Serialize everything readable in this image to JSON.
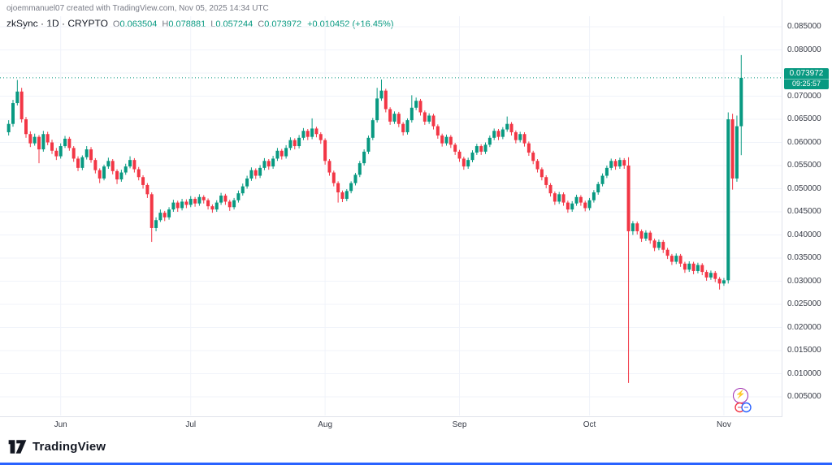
{
  "header": {
    "attribution": "ojoemmanuel07 created with TradingView.com, Nov 05, 2025 14:34 UTC"
  },
  "legend": {
    "symbol_line": "zkSync · 1D · CRYPTO",
    "ohlc": [
      {
        "label": "O",
        "value": "0.063504"
      },
      {
        "label": "H",
        "value": "0.078881"
      },
      {
        "label": "L",
        "value": "0.057244"
      },
      {
        "label": "C",
        "value": "0.073972"
      }
    ],
    "change": "+0.010452 (+16.45%)"
  },
  "footer": {
    "brand": "TradingView"
  },
  "stickers": {
    "lightning_glyph": "⚡"
  },
  "chart_data": {
    "type": "candlestick",
    "symbol": "zkSync",
    "interval": "1D",
    "exchange": "CRYPTO",
    "last_price": "0.073972",
    "countdown": "09:25:57",
    "colors": {
      "up": "#089981",
      "down": "#f23645",
      "last_price_line": "#089981",
      "grid": "#f0f3fa"
    },
    "y_axis": {
      "max": 0.085,
      "min": 0.005,
      "ticks": [
        "0.085000",
        "0.080000",
        "0.075000",
        "0.070000",
        "0.065000",
        "0.060000",
        "0.055000",
        "0.050000",
        "0.045000",
        "0.040000",
        "0.035000",
        "0.030000",
        "0.025000",
        "0.020000",
        "0.015000",
        "0.010000",
        "0.005000"
      ]
    },
    "x_axis": {
      "labels": [
        "Jun",
        "Jul",
        "Aug",
        "Sep",
        "Oct",
        "Nov"
      ],
      "label_candle_indices": [
        12,
        42,
        73,
        104,
        134,
        165
      ]
    },
    "candles": [
      [
        0.0622,
        0.0648,
        0.0615,
        0.064
      ],
      [
        0.064,
        0.0692,
        0.0634,
        0.0685
      ],
      [
        0.0685,
        0.0735,
        0.068,
        0.071
      ],
      [
        0.071,
        0.0718,
        0.0643,
        0.065
      ],
      [
        0.065,
        0.0655,
        0.061,
        0.0618
      ],
      [
        0.0618,
        0.0624,
        0.059,
        0.0598
      ],
      [
        0.0598,
        0.0619,
        0.0593,
        0.0612
      ],
      [
        0.0612,
        0.0616,
        0.0555,
        0.0585
      ],
      [
        0.0585,
        0.0625,
        0.058,
        0.0618
      ],
      [
        0.0618,
        0.0623,
        0.0594,
        0.06
      ],
      [
        0.06,
        0.0606,
        0.0575,
        0.0582
      ],
      [
        0.0582,
        0.0588,
        0.0562,
        0.057
      ],
      [
        0.057,
        0.0598,
        0.0565,
        0.0592
      ],
      [
        0.0592,
        0.0614,
        0.0588,
        0.0608
      ],
      [
        0.0608,
        0.0612,
        0.0582,
        0.0588
      ],
      [
        0.0588,
        0.0592,
        0.0558,
        0.0565
      ],
      [
        0.0565,
        0.057,
        0.0538,
        0.0545
      ],
      [
        0.0545,
        0.0572,
        0.054,
        0.0568
      ],
      [
        0.0568,
        0.0592,
        0.0563,
        0.0585
      ],
      [
        0.0585,
        0.059,
        0.0556,
        0.0562
      ],
      [
        0.0562,
        0.0566,
        0.0533,
        0.054
      ],
      [
        0.054,
        0.0544,
        0.0512,
        0.0522
      ],
      [
        0.0522,
        0.0552,
        0.0518,
        0.0548
      ],
      [
        0.0548,
        0.0567,
        0.0543,
        0.056
      ],
      [
        0.056,
        0.0564,
        0.0531,
        0.0538
      ],
      [
        0.0538,
        0.0542,
        0.051,
        0.052
      ],
      [
        0.052,
        0.0541,
        0.0515,
        0.0535
      ],
      [
        0.0535,
        0.0554,
        0.053,
        0.0548
      ],
      [
        0.0548,
        0.057,
        0.0544,
        0.0562
      ],
      [
        0.0562,
        0.0566,
        0.0535,
        0.0542
      ],
      [
        0.0542,
        0.0547,
        0.0518,
        0.0525
      ],
      [
        0.0525,
        0.0529,
        0.05,
        0.0508
      ],
      [
        0.0508,
        0.0512,
        0.048,
        0.0488
      ],
      [
        0.0488,
        0.0492,
        0.0385,
        0.0415
      ],
      [
        0.0415,
        0.0438,
        0.0408,
        0.0432
      ],
      [
        0.0432,
        0.0455,
        0.0428,
        0.0448
      ],
      [
        0.0448,
        0.0452,
        0.043,
        0.0438
      ],
      [
        0.0438,
        0.046,
        0.0433,
        0.0455
      ],
      [
        0.0455,
        0.0476,
        0.045,
        0.047
      ],
      [
        0.047,
        0.0474,
        0.045,
        0.0458
      ],
      [
        0.0458,
        0.0478,
        0.0453,
        0.0472
      ],
      [
        0.0472,
        0.0477,
        0.0458,
        0.0465
      ],
      [
        0.0465,
        0.0484,
        0.046,
        0.0478
      ],
      [
        0.0478,
        0.0482,
        0.0461,
        0.0468
      ],
      [
        0.0468,
        0.0488,
        0.0463,
        0.0482
      ],
      [
        0.0482,
        0.0486,
        0.0468,
        0.0475
      ],
      [
        0.0475,
        0.0479,
        0.0455,
        0.0462
      ],
      [
        0.0462,
        0.0466,
        0.0448,
        0.0455
      ],
      [
        0.0455,
        0.0475,
        0.045,
        0.047
      ],
      [
        0.047,
        0.0491,
        0.0465,
        0.0485
      ],
      [
        0.0485,
        0.0489,
        0.0465,
        0.0472
      ],
      [
        0.0472,
        0.0476,
        0.0452,
        0.046
      ],
      [
        0.046,
        0.048,
        0.0455,
        0.0475
      ],
      [
        0.0475,
        0.0496,
        0.047,
        0.049
      ],
      [
        0.049,
        0.0511,
        0.0485,
        0.0505
      ],
      [
        0.0505,
        0.0528,
        0.05,
        0.0522
      ],
      [
        0.0522,
        0.0546,
        0.0517,
        0.054
      ],
      [
        0.054,
        0.0544,
        0.0521,
        0.0528
      ],
      [
        0.0528,
        0.0551,
        0.0523,
        0.0545
      ],
      [
        0.0545,
        0.0566,
        0.054,
        0.056
      ],
      [
        0.056,
        0.0564,
        0.0541,
        0.0548
      ],
      [
        0.0548,
        0.0571,
        0.0543,
        0.0565
      ],
      [
        0.0565,
        0.0588,
        0.056,
        0.0582
      ],
      [
        0.0582,
        0.0586,
        0.0563,
        0.057
      ],
      [
        0.057,
        0.0594,
        0.0565,
        0.0588
      ],
      [
        0.0588,
        0.0611,
        0.0583,
        0.0605
      ],
      [
        0.0605,
        0.0609,
        0.0585,
        0.0592
      ],
      [
        0.0592,
        0.0616,
        0.0587,
        0.061
      ],
      [
        0.061,
        0.0631,
        0.0605,
        0.0625
      ],
      [
        0.0625,
        0.0629,
        0.0605,
        0.0612
      ],
      [
        0.0612,
        0.0652,
        0.0607,
        0.063
      ],
      [
        0.063,
        0.0634,
        0.0611,
        0.0618
      ],
      [
        0.0618,
        0.0622,
        0.0597,
        0.0605
      ],
      [
        0.0605,
        0.0609,
        0.0552,
        0.056
      ],
      [
        0.056,
        0.0564,
        0.0528,
        0.0535
      ],
      [
        0.0535,
        0.0539,
        0.0505,
        0.0512
      ],
      [
        0.0512,
        0.0516,
        0.047,
        0.0492
      ],
      [
        0.0492,
        0.0496,
        0.0471,
        0.0478
      ],
      [
        0.0478,
        0.0499,
        0.0473,
        0.0495
      ],
      [
        0.0495,
        0.0516,
        0.049,
        0.0512
      ],
      [
        0.0512,
        0.0534,
        0.0507,
        0.053
      ],
      [
        0.053,
        0.056,
        0.0525,
        0.0555
      ],
      [
        0.0555,
        0.0585,
        0.055,
        0.058
      ],
      [
        0.058,
        0.0615,
        0.0575,
        0.061
      ],
      [
        0.061,
        0.0653,
        0.0605,
        0.0648
      ],
      [
        0.0648,
        0.0718,
        0.0643,
        0.0695
      ],
      [
        0.0695,
        0.0736,
        0.069,
        0.0712
      ],
      [
        0.0712,
        0.0716,
        0.0665,
        0.0672
      ],
      [
        0.0672,
        0.0676,
        0.0638,
        0.0645
      ],
      [
        0.0645,
        0.0667,
        0.064,
        0.0662
      ],
      [
        0.0662,
        0.0666,
        0.0633,
        0.064
      ],
      [
        0.064,
        0.0644,
        0.0615,
        0.0622
      ],
      [
        0.0622,
        0.0652,
        0.0617,
        0.0648
      ],
      [
        0.0648,
        0.0702,
        0.0643,
        0.0675
      ],
      [
        0.0675,
        0.0697,
        0.067,
        0.069
      ],
      [
        0.069,
        0.0694,
        0.0658,
        0.0665
      ],
      [
        0.0665,
        0.0669,
        0.0638,
        0.0645
      ],
      [
        0.0645,
        0.0663,
        0.064,
        0.0658
      ],
      [
        0.0658,
        0.0662,
        0.0628,
        0.0635
      ],
      [
        0.0635,
        0.0639,
        0.0608,
        0.0615
      ],
      [
        0.0615,
        0.0619,
        0.0591,
        0.0598
      ],
      [
        0.0598,
        0.0617,
        0.0593,
        0.0612
      ],
      [
        0.0612,
        0.0616,
        0.0588,
        0.0595
      ],
      [
        0.0595,
        0.0599,
        0.0573,
        0.058
      ],
      [
        0.058,
        0.0584,
        0.0558,
        0.0565
      ],
      [
        0.0565,
        0.0569,
        0.0541,
        0.0548
      ],
      [
        0.0548,
        0.0567,
        0.0543,
        0.0562
      ],
      [
        0.0562,
        0.0583,
        0.0557,
        0.0578
      ],
      [
        0.0578,
        0.0597,
        0.0573,
        0.0592
      ],
      [
        0.0592,
        0.0596,
        0.0573,
        0.058
      ],
      [
        0.058,
        0.06,
        0.0575,
        0.0595
      ],
      [
        0.0595,
        0.0615,
        0.059,
        0.061
      ],
      [
        0.061,
        0.063,
        0.0605,
        0.0625
      ],
      [
        0.0625,
        0.0629,
        0.0605,
        0.0612
      ],
      [
        0.0612,
        0.0633,
        0.0607,
        0.0628
      ],
      [
        0.0628,
        0.0656,
        0.0623,
        0.064
      ],
      [
        0.064,
        0.0644,
        0.0615,
        0.0622
      ],
      [
        0.0622,
        0.0626,
        0.0598,
        0.0605
      ],
      [
        0.0605,
        0.0623,
        0.06,
        0.0618
      ],
      [
        0.0618,
        0.0622,
        0.0591,
        0.0598
      ],
      [
        0.0598,
        0.0602,
        0.0571,
        0.0578
      ],
      [
        0.0578,
        0.0582,
        0.0553,
        0.056
      ],
      [
        0.056,
        0.0564,
        0.0535,
        0.0542
      ],
      [
        0.0542,
        0.0546,
        0.0518,
        0.0525
      ],
      [
        0.0525,
        0.0529,
        0.0501,
        0.0508
      ],
      [
        0.0508,
        0.0512,
        0.0483,
        0.049
      ],
      [
        0.049,
        0.0494,
        0.0465,
        0.0472
      ],
      [
        0.0472,
        0.0493,
        0.0467,
        0.0488
      ],
      [
        0.0488,
        0.0492,
        0.0463,
        0.047
      ],
      [
        0.047,
        0.0474,
        0.0448,
        0.0455
      ],
      [
        0.0455,
        0.0473,
        0.045,
        0.0468
      ],
      [
        0.0468,
        0.0487,
        0.0463,
        0.0482
      ],
      [
        0.0482,
        0.0486,
        0.0463,
        0.047
      ],
      [
        0.047,
        0.0474,
        0.0451,
        0.0458
      ],
      [
        0.0458,
        0.048,
        0.0453,
        0.0475
      ],
      [
        0.0475,
        0.0497,
        0.047,
        0.0492
      ],
      [
        0.0492,
        0.0515,
        0.0487,
        0.051
      ],
      [
        0.051,
        0.0533,
        0.0505,
        0.0528
      ],
      [
        0.0528,
        0.055,
        0.0523,
        0.0545
      ],
      [
        0.0545,
        0.0565,
        0.054,
        0.056
      ],
      [
        0.056,
        0.0564,
        0.0541,
        0.0548
      ],
      [
        0.0548,
        0.0567,
        0.0543,
        0.0562
      ],
      [
        0.0562,
        0.0566,
        0.0543,
        0.055
      ],
      [
        0.055,
        0.0568,
        0.008,
        0.0408
      ],
      [
        0.0408,
        0.043,
        0.04,
        0.0425
      ],
      [
        0.0425,
        0.0429,
        0.0401,
        0.0408
      ],
      [
        0.0408,
        0.0412,
        0.0385,
        0.0392
      ],
      [
        0.0392,
        0.041,
        0.0387,
        0.0405
      ],
      [
        0.0405,
        0.0409,
        0.0381,
        0.0388
      ],
      [
        0.0388,
        0.0392,
        0.0365,
        0.0372
      ],
      [
        0.0372,
        0.039,
        0.0367,
        0.0385
      ],
      [
        0.0385,
        0.0389,
        0.0361,
        0.0368
      ],
      [
        0.0368,
        0.0372,
        0.0348,
        0.0355
      ],
      [
        0.0355,
        0.0359,
        0.0335,
        0.0342
      ],
      [
        0.0342,
        0.036,
        0.0337,
        0.0355
      ],
      [
        0.0355,
        0.0359,
        0.0331,
        0.0338
      ],
      [
        0.0338,
        0.0342,
        0.0318,
        0.0325
      ],
      [
        0.0325,
        0.0343,
        0.032,
        0.0338
      ],
      [
        0.0338,
        0.0342,
        0.0315,
        0.0322
      ],
      [
        0.0322,
        0.034,
        0.0317,
        0.0335
      ],
      [
        0.0335,
        0.0339,
        0.0313,
        0.032
      ],
      [
        0.032,
        0.0324,
        0.0301,
        0.0308
      ],
      [
        0.0308,
        0.0323,
        0.0303,
        0.0318
      ],
      [
        0.0318,
        0.0322,
        0.0298,
        0.0305
      ],
      [
        0.0305,
        0.0309,
        0.0282,
        0.0295
      ],
      [
        0.0295,
        0.0307,
        0.029,
        0.0302
      ],
      [
        0.0302,
        0.0665,
        0.0295,
        0.065
      ],
      [
        0.065,
        0.0662,
        0.0498,
        0.0522
      ],
      [
        0.0522,
        0.0658,
        0.0515,
        0.0635
      ],
      [
        0.063504,
        0.078881,
        0.057244,
        0.073972
      ]
    ]
  }
}
